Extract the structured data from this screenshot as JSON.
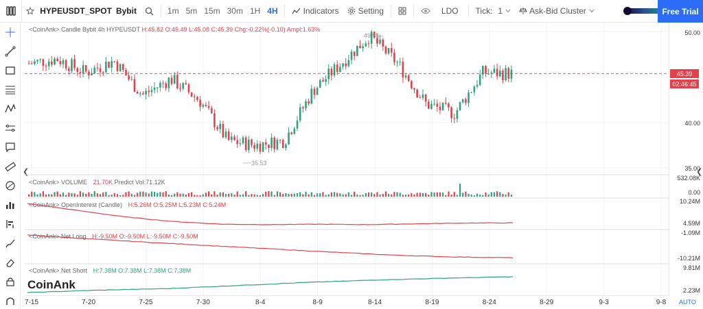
{
  "toolbar": {
    "symbol": "HYPEUSDT_SPOT",
    "exchange": "Bybit",
    "intervals": [
      "1m",
      "5m",
      "15m",
      "30m",
      "1H",
      "4H"
    ],
    "active_interval": "4H",
    "indicators_label": "Indicators",
    "setting_label": "Setting",
    "ldo_label": "LDO",
    "tick_label": "Tick:",
    "tick_value": "1",
    "cluster_label": "Ask-Bid Cluster",
    "free_trial_label": "Free Trial",
    "accent": "#2c6cf6"
  },
  "left_tools": [
    "crosshair-icon",
    "trendline-icon",
    "rectangle-icon",
    "fib-icon",
    "pattern-icon",
    "channel-icon",
    "text-note-icon",
    "ruler-icon",
    "magnet-icon",
    "bar-stats-icon",
    "volume-profile-icon",
    "brush-icon",
    "eraser-icon",
    "lock-icon",
    "magnet-bottom-icon"
  ],
  "panes": {
    "candle": {
      "legend_prefix": "<CoinAnk> Candle  Bybit 4h HYPEUSDT",
      "h": "H:45.82",
      "o": "O:45.49",
      "l": "L:45.08",
      "c": "C:45.39",
      "chg": "Chg:-0.22%(-0.10)",
      "ampl": "Ampl:1.63%",
      "axis": [
        "50.00",
        "40.00",
        "35.00"
      ],
      "high_mark": "49.55",
      "low_mark": "35.53",
      "last_price": "45.39",
      "countdown": "02:46:45"
    },
    "volume": {
      "legend_prefix": "<CoinAnk> VOLUME",
      "value": "21.70K",
      "predict": "Predict Vol:71.12K",
      "axis": [
        "532.08K",
        "0.00"
      ]
    },
    "oi": {
      "legend_prefix": "<CoinAnk> OpenInterest (Candle)",
      "h": "H:5.26M",
      "o": "O:5.25M",
      "l": "L:5.23M",
      "c": "C:5.24M",
      "axis": [
        "10.24M",
        "4.59M"
      ]
    },
    "net_long": {
      "legend_prefix": "<CoinAnk> Net Long",
      "h": "H:-9.50M",
      "o": "O:-9.50M",
      "l": "L:-9.50M",
      "c": "C:-9.50M",
      "axis": [
        "-1.09M",
        "-10.21M"
      ]
    },
    "net_short": {
      "legend_prefix": "<CoinAnk> Net Short",
      "h": "H:7.38M",
      "o": "O:7.38M",
      "l": "L:7.38M",
      "c": "C:7.38M",
      "axis": [
        "9.81M",
        "2.23M"
      ]
    }
  },
  "time_axis": [
    "7-15",
    "7-20",
    "7-25",
    "7-30",
    "8-4",
    "8-9",
    "8-14",
    "8-19",
    "8-24",
    "8-29",
    "9-3",
    "9-8"
  ],
  "watermark": "CoinAnk",
  "auto_label": "AUTO",
  "colors": {
    "up": "#2ea17a",
    "down": "#e2414b"
  },
  "chart_data": {
    "type": "candlestick",
    "series": [
      {
        "name": "price_close_trend",
        "x": [
          "7-15",
          "7-17",
          "7-20",
          "7-22",
          "7-25",
          "7-27",
          "7-30",
          "8-1",
          "8-4",
          "8-6",
          "8-9",
          "8-11",
          "8-14",
          "8-16",
          "8-19",
          "8-21",
          "8-24",
          "8-25"
        ],
        "values": [
          46.5,
          47.0,
          45.5,
          46.8,
          43.0,
          44.8,
          42.5,
          38.0,
          37.5,
          38.0,
          43.5,
          46.5,
          49.5,
          46.5,
          42.0,
          41.0,
          45.5,
          45.39
        ]
      },
      {
        "name": "open_interest_trend",
        "values": [
          10.2,
          8.5,
          6.8,
          5.6,
          4.9,
          4.8,
          4.9,
          4.8,
          5.0,
          5.2,
          5.24
        ]
      },
      {
        "name": "net_long_trend",
        "values": [
          -1.09,
          -2.5,
          -3.8,
          -5.0,
          -6.2,
          -7.4,
          -8.5,
          -9.2,
          -9.5
        ]
      },
      {
        "name": "net_short_trend",
        "values": [
          2.23,
          3.0,
          3.5,
          4.5,
          5.5,
          6.3,
          6.9,
          7.38
        ]
      }
    ],
    "ylim": [
      35.0,
      51.0
    ]
  }
}
